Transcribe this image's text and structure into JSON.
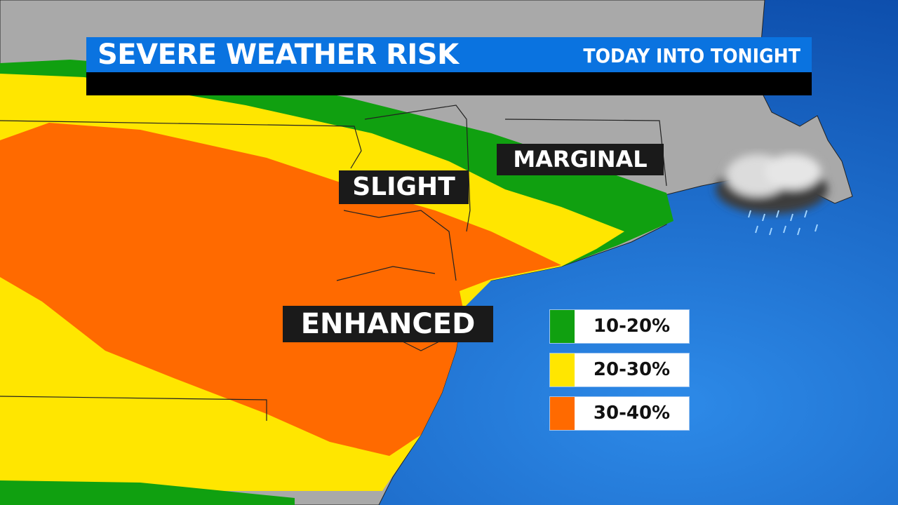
{
  "header": {
    "title": "SEVERE WEATHER RISK",
    "subtitle": "TODAY INTO TONIGHT"
  },
  "map_labels": {
    "marginal": "MARGINAL",
    "slight": "SLIGHT",
    "enhanced": "ENHANCED"
  },
  "legend": [
    {
      "label": "10-20%",
      "color": "#10a010",
      "category": "marginal"
    },
    {
      "label": "20-30%",
      "color": "#ffe600",
      "category": "slight"
    },
    {
      "label": "30-40%",
      "color": "#ff6a00",
      "category": "enhanced"
    }
  ],
  "colors": {
    "ocean": "#1565c8",
    "land": "#a9a9a9",
    "title_bar": "#0a73e0"
  },
  "icons": {
    "weather": "rain-cloud-icon"
  }
}
